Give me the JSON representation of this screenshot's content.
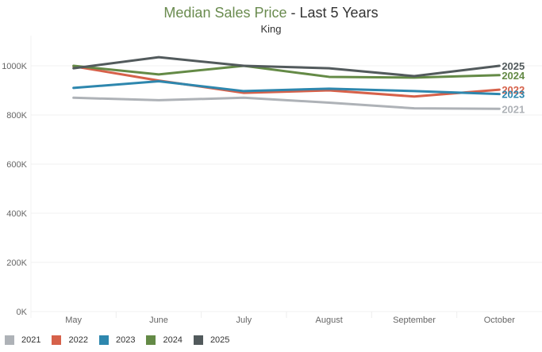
{
  "title": {
    "highlight": "Median Sales Price",
    "rest": " - Last 5 Years",
    "highlight_color": "#6a8b4f"
  },
  "subtitle": "King",
  "chart_data": {
    "type": "line",
    "title": "Median Sales Price - Last 5 Years",
    "subtitle": "King",
    "xlabel": "",
    "ylabel": "",
    "categories": [
      "May",
      "June",
      "July",
      "August",
      "September",
      "October"
    ],
    "ylim": [
      0,
      1100000
    ],
    "yticks": [
      0,
      200000,
      400000,
      600000,
      800000,
      1000000
    ],
    "ytick_labels": [
      "0K",
      "200K",
      "400K",
      "600K",
      "800K",
      "1000K"
    ],
    "grid": true,
    "legend_position": "bottom-left",
    "series": [
      {
        "name": "2021",
        "color": "#aeb2b7",
        "values": [
          870000,
          860000,
          870000,
          850000,
          827000,
          825000
        ]
      },
      {
        "name": "2022",
        "color": "#d6614a",
        "values": [
          998000,
          940000,
          890000,
          900000,
          875000,
          903000
        ]
      },
      {
        "name": "2023",
        "color": "#2e87ae",
        "values": [
          910000,
          937000,
          897000,
          907000,
          897000,
          885000
        ]
      },
      {
        "name": "2024",
        "color": "#648a46",
        "values": [
          1000000,
          965000,
          1000000,
          955000,
          952000,
          962000
        ]
      },
      {
        "name": "2025",
        "color": "#525a5c",
        "values": [
          990000,
          1035000,
          1000000,
          990000,
          958000,
          1000000
        ]
      }
    ]
  }
}
